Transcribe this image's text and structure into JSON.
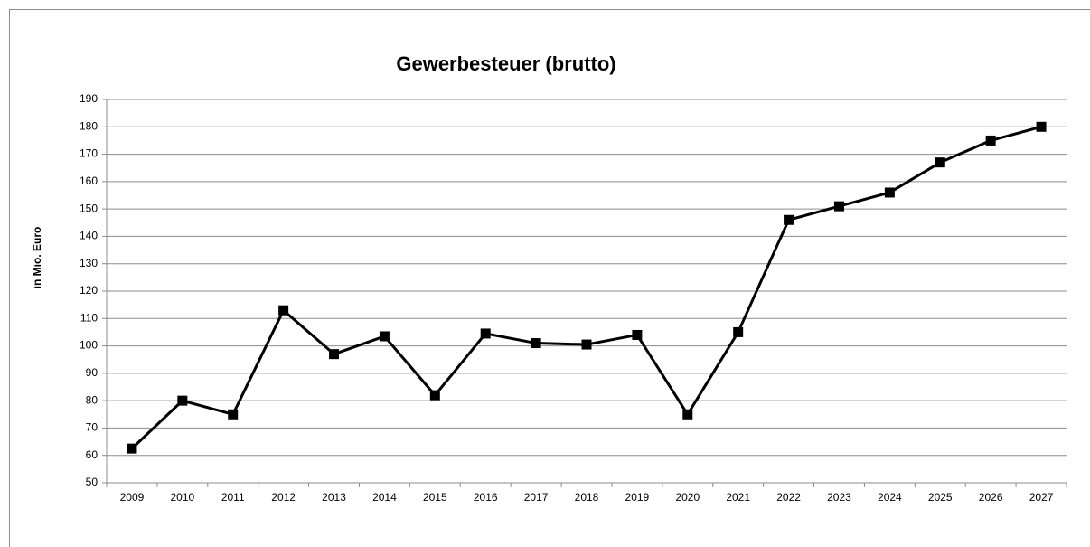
{
  "chart_data": {
    "type": "line",
    "title": "Gewerbesteuer (brutto)",
    "y_label": "in Mio. Euro",
    "categories": [
      "2009",
      "2010",
      "2011",
      "2012",
      "2013",
      "2014",
      "2015",
      "2016",
      "2017",
      "2018",
      "2019",
      "2020",
      "2021",
      "2022",
      "2023",
      "2024",
      "2025",
      "2026",
      "2027"
    ],
    "values": [
      62.5,
      80,
      75,
      113,
      97,
      103.5,
      82,
      104.5,
      101,
      100.5,
      104,
      75,
      105,
      146,
      151,
      156,
      167,
      175,
      180
    ],
    "color": "#000000",
    "ylim": [
      50,
      190
    ],
    "yticks": [
      50,
      60,
      70,
      80,
      90,
      100,
      110,
      120,
      130,
      140,
      150,
      160,
      170,
      180,
      190
    ],
    "grid": true
  }
}
